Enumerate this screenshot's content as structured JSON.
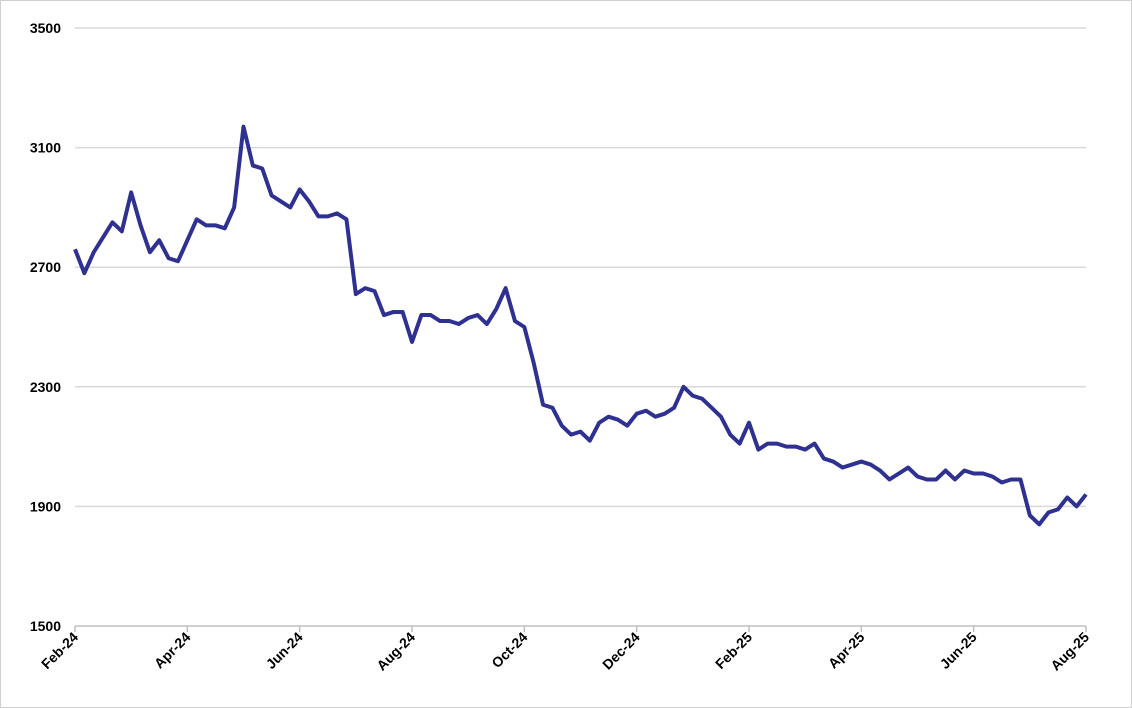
{
  "chart_data": {
    "type": "line",
    "categories": [
      "Feb-24",
      null,
      null,
      null,
      null,
      null,
      null,
      null,
      null,
      null,
      null,
      null,
      "Apr-24",
      null,
      null,
      null,
      null,
      null,
      null,
      null,
      null,
      null,
      null,
      null,
      "Jun-24",
      null,
      null,
      null,
      null,
      null,
      null,
      null,
      null,
      null,
      null,
      null,
      "Aug-24",
      null,
      null,
      null,
      null,
      null,
      null,
      null,
      null,
      null,
      null,
      null,
      "Oct-24",
      null,
      null,
      null,
      null,
      null,
      null,
      null,
      null,
      null,
      null,
      null,
      "Dec-24",
      null,
      null,
      null,
      null,
      null,
      null,
      null,
      null,
      null,
      null,
      null,
      "Feb-25",
      null,
      null,
      null,
      null,
      null,
      null,
      null,
      null,
      null,
      null,
      null,
      "Apr-25",
      null,
      null,
      null,
      null,
      null,
      null,
      null,
      null,
      null,
      null,
      null,
      "Jun-25",
      null,
      null,
      null,
      null,
      null,
      null,
      null,
      null,
      null,
      null,
      null,
      "Aug-25"
    ],
    "values": [
      2760,
      2680,
      2750,
      2800,
      2850,
      2820,
      2950,
      2840,
      2750,
      2790,
      2730,
      2720,
      2790,
      2860,
      2840,
      2840,
      2830,
      2900,
      3170,
      3040,
      3030,
      2940,
      2920,
      2900,
      2960,
      2920,
      2870,
      2870,
      2880,
      2860,
      2610,
      2630,
      2620,
      2540,
      2550,
      2550,
      2450,
      2540,
      2540,
      2520,
      2520,
      2510,
      2530,
      2540,
      2510,
      2560,
      2630,
      2520,
      2500,
      2380,
      2240,
      2230,
      2170,
      2140,
      2150,
      2120,
      2180,
      2200,
      2190,
      2170,
      2210,
      2220,
      2200,
      2210,
      2230,
      2300,
      2270,
      2260,
      2230,
      2200,
      2140,
      2110,
      2180,
      2090,
      2110,
      2110,
      2100,
      2100,
      2090,
      2110,
      2060,
      2050,
      2030,
      2040,
      2050,
      2040,
      2020,
      1990,
      2010,
      2030,
      2000,
      1990,
      1990,
      2020,
      1990,
      2020,
      2010,
      2010,
      2000,
      1980,
      1990,
      1990,
      1870,
      1840,
      1880,
      1890,
      1930,
      1900,
      1940
    ],
    "color": "#2e3192",
    "ylim": [
      1500,
      3500
    ],
    "yticks": [
      1500,
      1900,
      2300,
      2700,
      3100,
      3500
    ],
    "grid": true
  }
}
